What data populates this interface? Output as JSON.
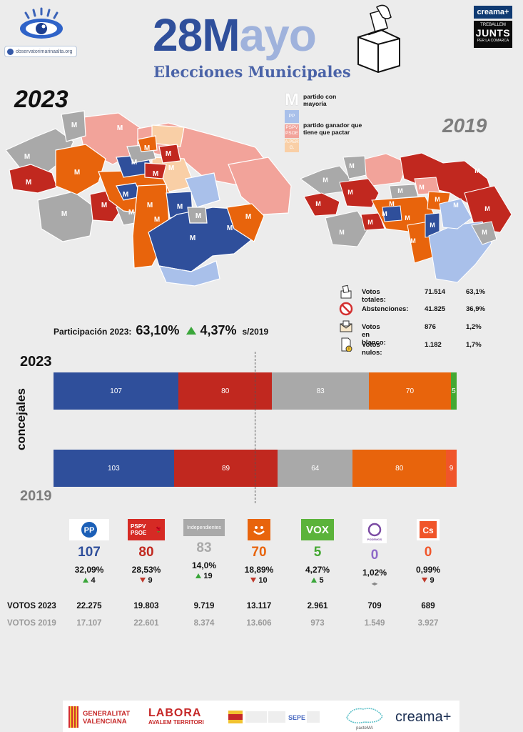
{
  "header": {
    "url": "observatorimarinaalta.org",
    "title_number": "28",
    "title_m": "M",
    "title_rest": "ayo",
    "subtitle": "Elecciones Municipales",
    "creama_badge": "creama+",
    "junts_top": "TREBALLEM",
    "junts_main": "JUNTS",
    "junts_bottom": "PER LA COMARCA"
  },
  "maps": {
    "year_left": "2023",
    "year_right": "2019",
    "marker": "M"
  },
  "legend": {
    "majority_symbol": "M",
    "majority_label": "partido con mayoría",
    "swatch_pp": "PP",
    "swatch_psoe": "PSPV PSOE",
    "swatch_other": "A.PER G.",
    "winner_label": "partido ganador que tiene que pactar",
    "colors": {
      "pp": "#a9c0ea",
      "psoe": "#f2a39a",
      "other": "#f9cfa6"
    }
  },
  "stats": [
    {
      "icon": "ballot-box-icon",
      "label": "Votos totales:",
      "value": "71.514",
      "pct": "63,1%"
    },
    {
      "icon": "prohibited-icon",
      "label": "Abstenciones:",
      "value": "41.825",
      "pct": "36,9%"
    },
    {
      "icon": "envelope-icon",
      "label": "Votos en blanco:",
      "value": "876",
      "pct": "1,2%"
    },
    {
      "icon": "null-document-icon",
      "label": "Votos nulos:",
      "value": "1.182",
      "pct": "1,7%"
    }
  ],
  "participation": {
    "label": "Participación 2023:",
    "value": "63,10%",
    "delta": "4,37%",
    "ref": "s/2019"
  },
  "bars": {
    "axis_label": "concejales",
    "year_a": "2023",
    "year_b": "2019",
    "colors": [
      "#2f4f9b",
      "#c1281f",
      "#a9a9a9",
      "#e8640c",
      "#44a832",
      "#f0552a"
    ],
    "row_2023": [
      {
        "party": "PP",
        "value": 107,
        "color": "#2f4f9b",
        "label": "107"
      },
      {
        "party": "PSPV-PSOE",
        "value": 80,
        "color": "#c1281f",
        "label": "80"
      },
      {
        "party": "Independientes",
        "value": 83,
        "color": "#a9a9a9",
        "label": "83"
      },
      {
        "party": "Compromís",
        "value": 70,
        "color": "#e8640c",
        "label": "70"
      },
      {
        "party": "VOX",
        "value": 5,
        "color": "#44a832",
        "label": "5"
      }
    ],
    "row_2019": [
      {
        "party": "PP",
        "value": 103,
        "color": "#2f4f9b",
        "label": "103"
      },
      {
        "party": "PSPV-PSOE",
        "value": 89,
        "color": "#c1281f",
        "label": "89"
      },
      {
        "party": "Independientes",
        "value": 64,
        "color": "#a9a9a9",
        "label": "64"
      },
      {
        "party": "Compromís",
        "value": 80,
        "color": "#e8640c",
        "label": "80"
      },
      {
        "party": "Cs",
        "value": 9,
        "color": "#f0552a",
        "label": "9"
      }
    ]
  },
  "parties": [
    {
      "logo": "pp",
      "logo_text": "PP",
      "seats": "107",
      "seats_color": "#2f4f9b",
      "pct": "32,09%",
      "dir": "up",
      "change": "4",
      "votes_2023": "22.275",
      "votes_2019": "17.107"
    },
    {
      "logo": "psoe",
      "logo_text": "PSPV PSOE",
      "seats": "80",
      "seats_color": "#c1281f",
      "pct": "28,53%",
      "dir": "down",
      "change": "9",
      "votes_2023": "19.803",
      "votes_2019": "22.601"
    },
    {
      "logo": "ind",
      "logo_text": "Independientes",
      "seats": "83",
      "seats_color": "#a9a9a9",
      "pct": "14,0%",
      "dir": "up",
      "change": "19",
      "votes_2023": "9.719",
      "votes_2019": "8.374"
    },
    {
      "logo": "compromis",
      "logo_text": "",
      "seats": "70",
      "seats_color": "#e8640c",
      "pct": "18,89%",
      "dir": "down",
      "change": "10",
      "votes_2023": "13.117",
      "votes_2019": "13.606"
    },
    {
      "logo": "vox",
      "logo_text": "VOX",
      "seats": "5",
      "seats_color": "#44a832",
      "pct": "4,27%",
      "dir": "up",
      "change": "5",
      "votes_2023": "2.961",
      "votes_2019": "973"
    },
    {
      "logo": "podemos",
      "logo_text": "PODEMOS",
      "seats": "0",
      "seats_color": "#8e6ac8",
      "pct": "1,02%",
      "dir": "same",
      "change": "",
      "votes_2023": "709",
      "votes_2019": "1.549"
    },
    {
      "logo": "cs",
      "logo_text": "Cs",
      "seats": "0",
      "seats_color": "#f0552a",
      "pct": "0,99%",
      "dir": "down",
      "change": "9",
      "votes_2023": "689",
      "votes_2019": "3.927"
    }
  ],
  "votes": {
    "label_2023": "VOTOS 2023",
    "label_2019": "VOTOS 2019"
  },
  "footer": {
    "gv_line1": "GENERALITAT",
    "gv_line2": "VALENCIANA",
    "labora_line1": "LABORA",
    "labora_line2": "AVALEM TERRITORI",
    "sepe": "SEPE",
    "pactema": "pacteMA",
    "creama": "creama+"
  }
}
